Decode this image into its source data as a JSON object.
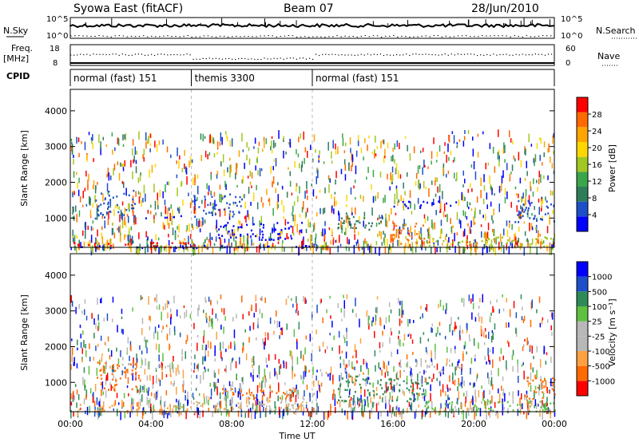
{
  "header": {
    "station": "Syowa East (fitACF)",
    "beam": "Beam 07",
    "date": "28/Jun/2010"
  },
  "panels": {
    "nsky_label": "N.Sky",
    "nsearch_label": "N.Search",
    "freq_label": "Freq.",
    "freq_unit": "[MHz]",
    "nave_label": "Nave",
    "cpid_label": "CPID",
    "nsky_ticks": [
      "10^5",
      "10^0"
    ],
    "nsearch_ticks": [
      "10^5",
      "10^0"
    ],
    "freq_ticks": [
      "18",
      "8"
    ],
    "nave_ticks": [
      "60",
      "0"
    ]
  },
  "cpid_segments": [
    {
      "label": "normal (fast) 151",
      "start_h": 0,
      "end_h": 6
    },
    {
      "label": "themis 3300",
      "start_h": 6,
      "end_h": 12
    },
    {
      "label": "normal (fast) 151",
      "start_h": 12,
      "end_h": 24
    }
  ],
  "xaxis": {
    "label": "Time UT",
    "ticks": [
      "00:00",
      "04:00",
      "08:00",
      "12:00",
      "16:00",
      "20:00",
      "00:00"
    ]
  },
  "chart_data": [
    {
      "type": "heatmap",
      "name": "Power",
      "xlabel": "Time UT",
      "ylabel": "Slant Range [km]",
      "xlim": [
        0,
        24
      ],
      "ylim": [
        180,
        4600
      ],
      "yticks": [
        "1000",
        "2000",
        "3000",
        "4000"
      ],
      "colorbar_label": "Power [dB]",
      "colorbar_ticks": [
        "28",
        "24",
        "20",
        "16",
        "12",
        "8",
        "4"
      ],
      "colors": [
        "#0000ff",
        "#1c4fc8",
        "#2e7d5a",
        "#3aa64a",
        "#a0c820",
        "#ffd700",
        "#ffa500",
        "#ff6a00",
        "#ff0000"
      ],
      "regions": [
        {
          "t0": 0.0,
          "t1": 6.0,
          "r0": 180,
          "r1": 350,
          "color": "#ff0000"
        },
        {
          "t0": 0.0,
          "t1": 12.0,
          "r0": 180,
          "r1": 260,
          "color": "#0000ff"
        },
        {
          "t0": 1.2,
          "t1": 3.2,
          "r0": 1000,
          "r1": 1800,
          "color": "#1c4fc8"
        },
        {
          "t0": 3.5,
          "t1": 6.0,
          "r0": 1000,
          "r1": 1100,
          "color": "#0000ff"
        },
        {
          "t0": 6.0,
          "t1": 8.5,
          "r0": 1000,
          "r1": 1700,
          "color": "#1c4fc8"
        },
        {
          "t0": 7.0,
          "t1": 11.5,
          "r0": 400,
          "r1": 900,
          "color": "#0000ff"
        },
        {
          "t0": 13.2,
          "t1": 15.5,
          "r0": 700,
          "r1": 1200,
          "color": "#2e7d5a"
        },
        {
          "t0": 15.8,
          "t1": 17.8,
          "r0": 300,
          "r1": 900,
          "color": "#ff6a00"
        },
        {
          "t0": 16.0,
          "t1": 19.5,
          "r0": 1300,
          "r1": 1500,
          "color": "#0000ff"
        },
        {
          "t0": 17.5,
          "t1": 24.0,
          "r0": 180,
          "r1": 500,
          "color": "#a0c820"
        },
        {
          "t0": 22.0,
          "t1": 24.0,
          "r0": 900,
          "r1": 1600,
          "color": "#1c4fc8"
        }
      ]
    },
    {
      "type": "heatmap",
      "name": "Velocity",
      "xlabel": "Time UT",
      "ylabel": "Slant Range [km]",
      "xlim": [
        0,
        24
      ],
      "ylim": [
        180,
        4600
      ],
      "yticks": [
        "1000",
        "2000",
        "3000",
        "4000"
      ],
      "colorbar_label": "Velocity [m s⁻¹]",
      "colorbar_ticks": [
        "1000",
        "500",
        "100",
        "25",
        "-25",
        "-100",
        "-500",
        "-1000"
      ],
      "colors": [
        "#ff0000",
        "#ff6a00",
        "#ffa040",
        "#b8b8b8",
        "#b8b8b8",
        "#5fc040",
        "#2e8b57",
        "#1c4fc8",
        "#0000ff"
      ],
      "regions": [
        {
          "t0": 0.0,
          "t1": 6.0,
          "r0": 180,
          "r1": 400,
          "color": "#ffa040"
        },
        {
          "t0": 1.2,
          "t1": 3.4,
          "r0": 800,
          "r1": 1600,
          "color": "#ff6a00"
        },
        {
          "t0": 2.5,
          "t1": 5.0,
          "r0": 1400,
          "r1": 1550,
          "color": "#b8b8b8"
        },
        {
          "t0": 6.0,
          "t1": 12.0,
          "r0": 180,
          "r1": 500,
          "color": "#c8b890"
        },
        {
          "t0": 7.5,
          "t1": 11.0,
          "r0": 500,
          "r1": 900,
          "color": "#ff6a00"
        },
        {
          "t0": 13.2,
          "t1": 17.8,
          "r0": 500,
          "r1": 1200,
          "color": "#2e8b57"
        },
        {
          "t0": 16.0,
          "t1": 20.0,
          "r0": 1300,
          "r1": 1500,
          "color": "#b8b8b8"
        },
        {
          "t0": 17.5,
          "t1": 24.0,
          "r0": 180,
          "r1": 500,
          "color": "#5fc040"
        },
        {
          "t0": 22.5,
          "t1": 24.0,
          "r0": 500,
          "r1": 1200,
          "color": "#ff6a00"
        }
      ]
    }
  ]
}
